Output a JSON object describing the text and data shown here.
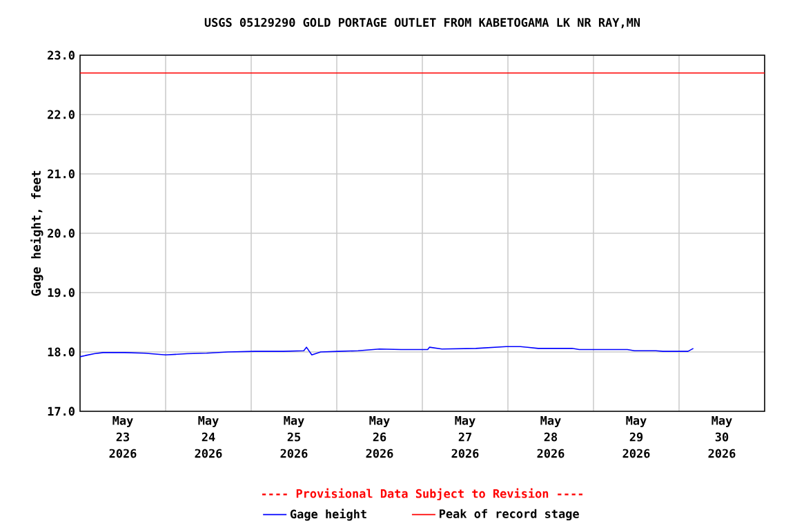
{
  "chart_data": {
    "type": "line",
    "title": "USGS 05129290 GOLD PORTAGE OUTLET FROM KABETOGAMA LK NR RAY,MN",
    "ylabel": "Gage height, feet",
    "annotations": [
      "---- Provisional Data Subject to Revision ----"
    ],
    "xlim": [
      "2026-05-23T00:00",
      "2026-05-31T00:00"
    ],
    "xticks": [
      {
        "value": "2026-05-23T12:00",
        "label": "May 23 2026"
      },
      {
        "value": "2026-05-24T00:00",
        "label": null
      },
      {
        "value": "2026-05-24T12:00",
        "label": "May 24 2026"
      },
      {
        "value": "2026-05-25T00:00",
        "label": null
      },
      {
        "value": "2026-05-25T12:00",
        "label": "May 25 2026"
      },
      {
        "value": "2026-05-26T00:00",
        "label": null
      },
      {
        "value": "2026-05-26T12:00",
        "label": "May 26 2026"
      },
      {
        "value": "2026-05-27T00:00",
        "label": null
      },
      {
        "value": "2026-05-27T12:00",
        "label": "May 27 2026"
      },
      {
        "value": "2026-05-28T00:00",
        "label": null
      },
      {
        "value": "2026-05-28T12:00",
        "label": "May 28 2026"
      },
      {
        "value": "2026-05-29T00:00",
        "label": null
      },
      {
        "value": "2026-05-29T12:00",
        "label": "May 29 2026"
      },
      {
        "value": "2026-05-30T00:00",
        "label": null
      },
      {
        "value": "2026-05-30T12:00",
        "label": "May 30 2026"
      }
    ],
    "ylim": [
      17.0,
      23.0
    ],
    "yticks": [
      {
        "value": 17,
        "label": "17.0"
      },
      {
        "value": 18,
        "label": "18.0"
      },
      {
        "value": 19,
        "label": "19.0"
      },
      {
        "value": 20,
        "label": "20.0"
      },
      {
        "value": 21,
        "label": "21.0"
      },
      {
        "value": 22,
        "label": "22.0"
      },
      {
        "value": 23,
        "label": "23.0"
      }
    ],
    "grid": true,
    "legend": "bottom",
    "marker": "none",
    "line_style": "solid",
    "series": [
      {
        "name": "Gage height",
        "color": "#0000ff",
        "x": [
          "2026-05-23T00:00",
          "2026-05-23T01:30",
          "2026-05-23T04:00",
          "2026-05-23T06:30",
          "2026-05-23T12:30",
          "2026-05-23T18:00",
          "2026-05-24T00:00",
          "2026-05-24T06:00",
          "2026-05-24T11:30",
          "2026-05-24T17:30",
          "2026-05-25T01:00",
          "2026-05-25T09:00",
          "2026-05-25T14:45",
          "2026-05-25T15:30",
          "2026-05-25T17:00",
          "2026-05-25T19:30",
          "2026-05-26T00:30",
          "2026-05-26T06:00",
          "2026-05-26T12:00",
          "2026-05-26T18:00",
          "2026-05-27T01:30",
          "2026-05-27T02:00",
          "2026-05-27T05:30",
          "2026-05-27T15:00",
          "2026-05-27T23:30",
          "2026-05-28T03:30",
          "2026-05-28T08:30",
          "2026-05-28T18:00",
          "2026-05-28T20:00",
          "2026-05-29T09:30",
          "2026-05-29T11:30",
          "2026-05-29T17:30",
          "2026-05-29T19:30",
          "2026-05-30T02:30",
          "2026-05-30T04:00"
        ],
        "values": [
          17.92,
          17.94,
          17.97,
          17.99,
          17.99,
          17.98,
          17.95,
          17.97,
          17.98,
          18.0,
          18.01,
          18.01,
          18.02,
          18.08,
          17.95,
          18.0,
          18.01,
          18.02,
          18.05,
          18.04,
          18.04,
          18.08,
          18.05,
          18.06,
          18.09,
          18.09,
          18.06,
          18.06,
          18.04,
          18.04,
          18.02,
          18.02,
          18.01,
          18.01,
          18.06
        ]
      },
      {
        "name": "Peak of record stage",
        "color": "#ff0000",
        "x": [
          "2026-05-23T00:00",
          "2026-05-31T00:00"
        ],
        "values": [
          22.7,
          22.7
        ]
      }
    ]
  }
}
